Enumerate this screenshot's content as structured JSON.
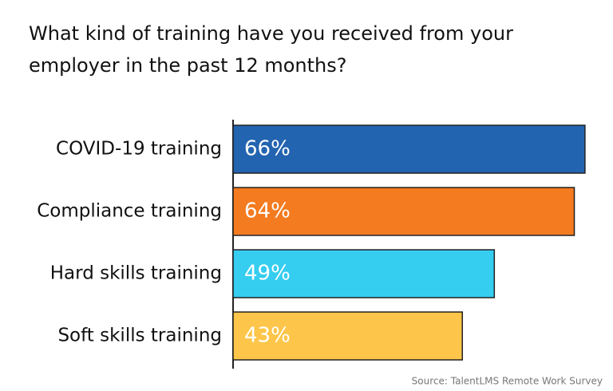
{
  "chart_data": {
    "type": "bar",
    "orientation": "horizontal",
    "title": "What kind of training have you received from your employer in the past 12 months?",
    "categories": [
      "COVID-19 training",
      "Compliance training",
      "Hard skills training",
      "Soft skills training"
    ],
    "values": [
      66,
      64,
      49,
      43
    ],
    "value_labels": [
      "66%",
      "64%",
      "49%",
      "43%"
    ],
    "colors": [
      "#2364b0",
      "#f47b20",
      "#35cdf0",
      "#fdc64a"
    ],
    "source": "Source: TalentLMS Remote Work Survey"
  }
}
